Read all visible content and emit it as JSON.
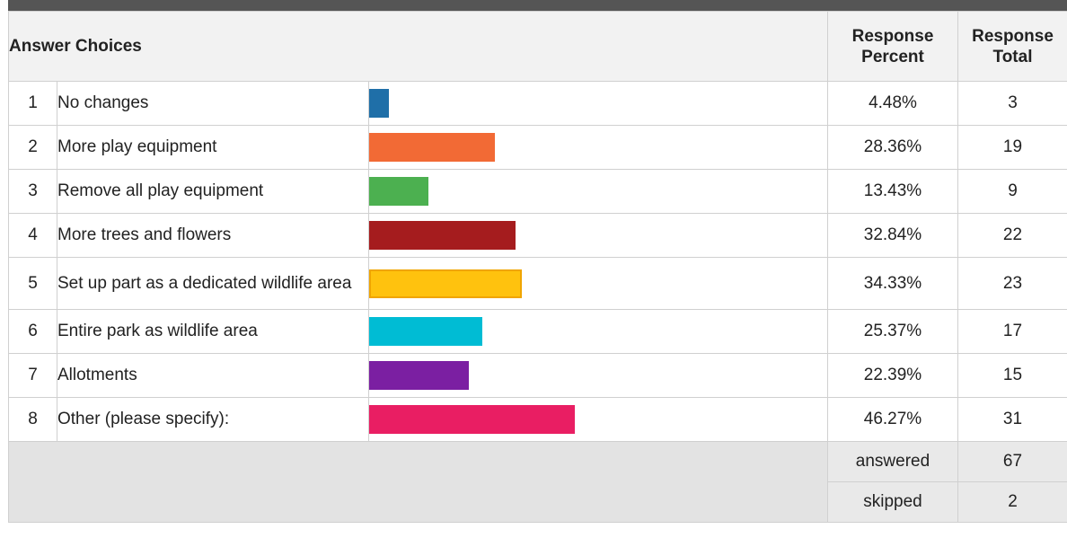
{
  "header": {
    "answer_choices": "Answer Choices",
    "response_percent_line1": "Response",
    "response_percent_line2": "Percent",
    "response_total_line1": "Response",
    "response_total_line2": "Total"
  },
  "chart_data": {
    "type": "bar",
    "categories": [
      "No changes",
      "More play equipment",
      "Remove all play equipment",
      "More trees and flowers",
      "Set up part as a dedicated wildlife area",
      "Entire park as wildlife area",
      "Allotments",
      "Other (please specify):"
    ],
    "values": [
      4.48,
      28.36,
      13.43,
      32.84,
      34.33,
      25.37,
      22.39,
      46.27
    ],
    "ylim": [
      0,
      100
    ],
    "colors": [
      "#1f6fa8",
      "#f26a35",
      "#4cb050",
      "#a51c1e",
      "#ffc20e",
      "#00bcd4",
      "#7b1fa2",
      "#e91e63"
    ]
  },
  "rows": [
    {
      "num": "1",
      "label": "No changes",
      "percent": "4.48%",
      "total": "3"
    },
    {
      "num": "2",
      "label": "More play equipment",
      "percent": "28.36%",
      "total": "19"
    },
    {
      "num": "3",
      "label": "Remove all play equipment",
      "percent": "13.43%",
      "total": "9"
    },
    {
      "num": "4",
      "label": "More trees and flowers",
      "percent": "32.84%",
      "total": "22"
    },
    {
      "num": "5",
      "label": "Set up part as a dedicated wildlife area",
      "percent": "34.33%",
      "total": "23"
    },
    {
      "num": "6",
      "label": "Entire park as wildlife area",
      "percent": "25.37%",
      "total": "17"
    },
    {
      "num": "7",
      "label": "Allotments",
      "percent": "22.39%",
      "total": "15"
    },
    {
      "num": "8",
      "label": "Other (please specify):",
      "percent": "46.27%",
      "total": "31"
    }
  ],
  "footer": {
    "answered_label": "answered",
    "answered_value": "67",
    "skipped_label": "skipped",
    "skipped_value": "2"
  }
}
